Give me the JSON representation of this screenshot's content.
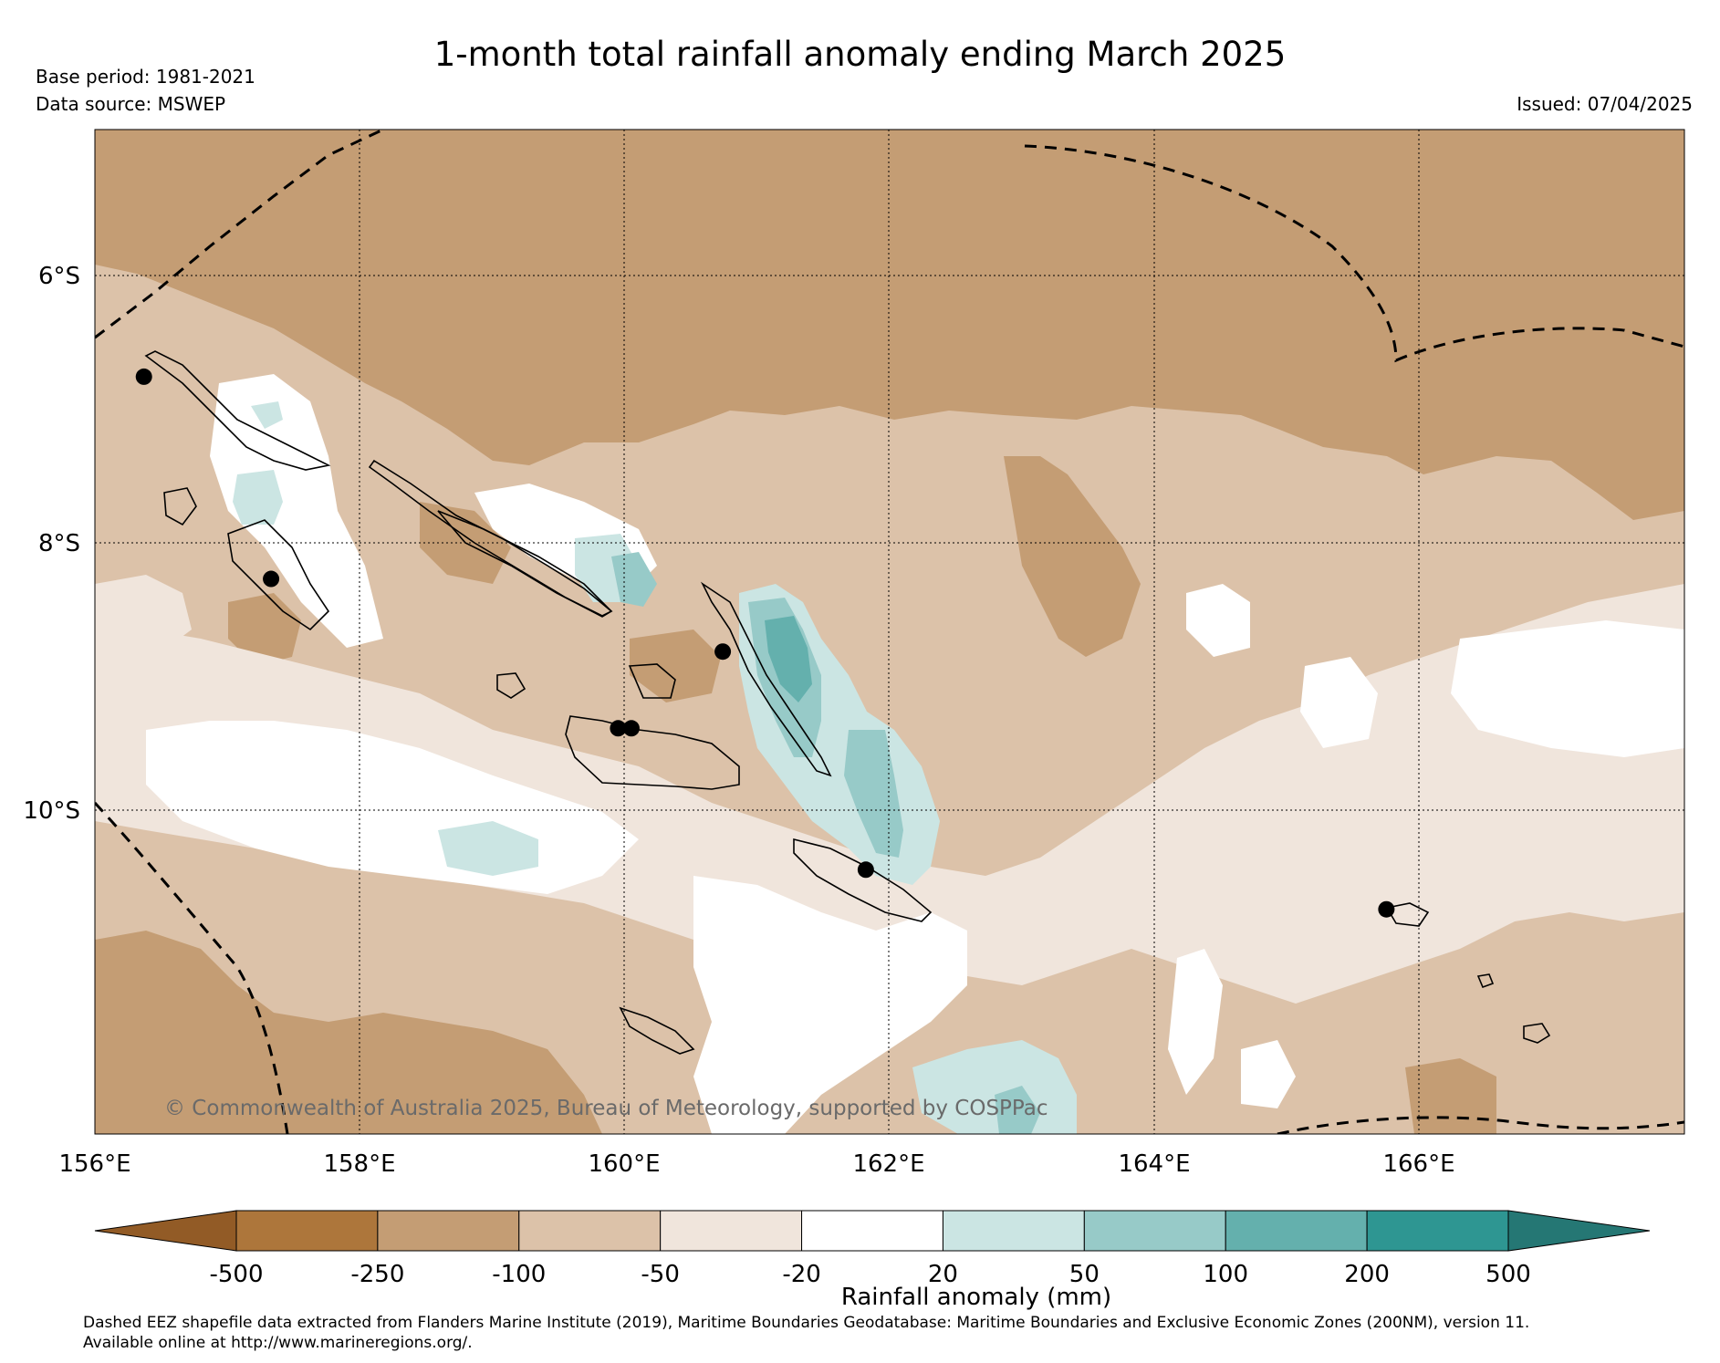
{
  "title": "1-month total rainfall anomaly ending March 2025",
  "base_period": "Base period: 1981-2021",
  "data_source": "Data source: MSWEP",
  "issued": "Issued: 07/04/2025",
  "copyright": "© Commonwealth of Australia 2025, Bureau of Meteorology, supported by COSPPac",
  "map": {
    "lat_labels": [
      "6°S",
      "8°S",
      "10°S"
    ],
    "lon_labels": [
      "156°E",
      "158°E",
      "160°E",
      "162°E",
      "164°E",
      "166°E"
    ],
    "lon_range": [
      156,
      168
    ],
    "lat_range": [
      -4.9,
      -12.5
    ],
    "stations": [
      {
        "lon": 156.37,
        "lat": -6.77
      },
      {
        "lon": 157.33,
        "lat": -8.3
      },
      {
        "lon": 159.95,
        "lat": -9.43
      },
      {
        "lon": 160.05,
        "lat": -9.43
      },
      {
        "lon": 160.74,
        "lat": -8.85
      },
      {
        "lon": 161.82,
        "lat": -10.5
      },
      {
        "lon": 165.75,
        "lat": -10.8
      }
    ]
  },
  "colorbar": {
    "label": "Rainfall anomaly (mm)",
    "ticks": [
      "-500",
      "-250",
      "-100",
      "-50",
      "-20",
      "20",
      "50",
      "100",
      "200",
      "500"
    ],
    "colors": [
      "#925b26",
      "#ad763b",
      "#c49d74",
      "#dcc2a9",
      "#f0e5dc",
      "#ffffff",
      "#cbe5e3",
      "#97cac8",
      "#64b0ad",
      "#2e9692",
      "#257774"
    ]
  },
  "footnote": {
    "line1": "Dashed EEZ shapefile data extracted from Flanders Marine Institute (2019), Maritime Boundaries Geodatabase: Maritime Boundaries and Exclusive Economic Zones (200NM), version 11.",
    "line2": "Available online at http://www.marineregions.org/."
  }
}
